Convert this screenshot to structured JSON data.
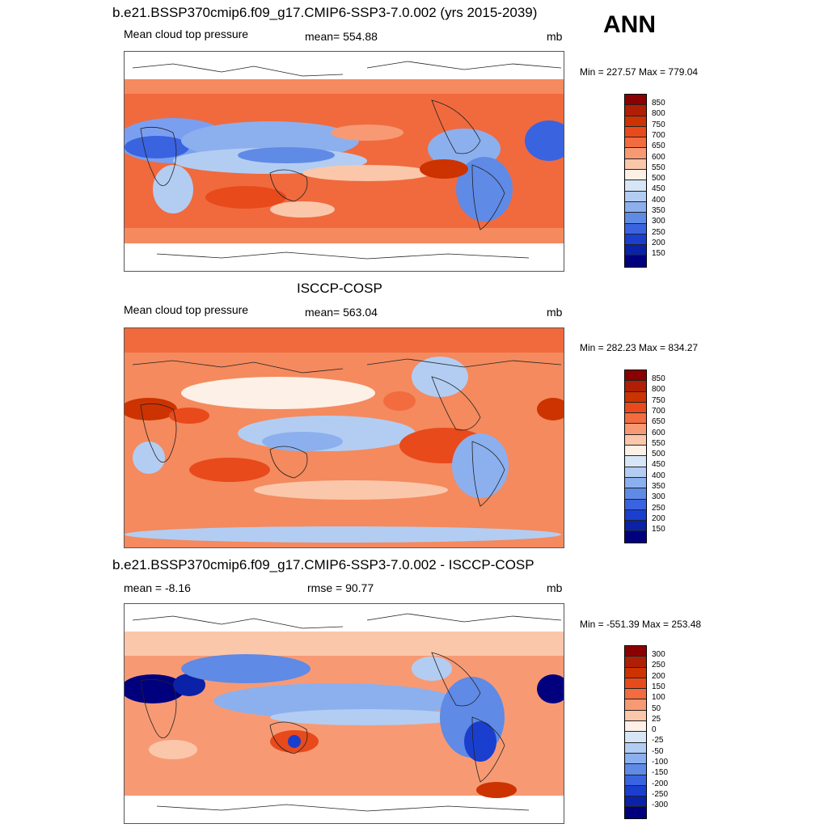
{
  "season": "ANN",
  "panel1": {
    "title": "b.e21.BSSP370cmip6.f09_g17.CMIP6-SSP3-7.0.002 (yrs 2015-2039)",
    "left_label": "Mean cloud top pressure",
    "center_label": "mean= 554.88",
    "units": "mb",
    "minmax": "Min = 227.57 Max = 779.04",
    "colorbar_labels": [
      "850",
      "800",
      "750",
      "700",
      "650",
      "600",
      "550",
      "500",
      "450",
      "400",
      "350",
      "300",
      "250",
      "200",
      "150"
    ]
  },
  "panel2": {
    "title": "ISCCP-COSP",
    "left_label": "Mean cloud top pressure",
    "center_label": "mean= 563.04",
    "units": "mb",
    "minmax": "Min = 282.23 Max = 834.27",
    "colorbar_labels": [
      "850",
      "800",
      "750",
      "700",
      "650",
      "600",
      "550",
      "500",
      "450",
      "400",
      "350",
      "300",
      "250",
      "200",
      "150"
    ]
  },
  "panel3": {
    "title": "b.e21.BSSP370cmip6.f09_g17.CMIP6-SSP3-7.0.002 - ISCCP-COSP",
    "left_label": "mean =  -8.16",
    "center_label": "rmse =  90.77",
    "units": "mb",
    "minmax": "Min = -551.39 Max = 253.48",
    "colorbar_labels": [
      "300",
      "250",
      "200",
      "150",
      "100",
      "50",
      "25",
      "0",
      "-25",
      "-50",
      "-100",
      "-150",
      "-200",
      "-250",
      "-300"
    ]
  },
  "colorbar_colors": [
    "#8b0000",
    "#b01f05",
    "#cc3300",
    "#e84a1c",
    "#f26c3f",
    "#f79a74",
    "#fbc7ab",
    "#fdf0e6",
    "#d6e6f7",
    "#b3cdf2",
    "#8cb0ee",
    "#5f8ae6",
    "#3a63e0",
    "#1a3fcf",
    "#0a22a8",
    "#00007f"
  ]
}
